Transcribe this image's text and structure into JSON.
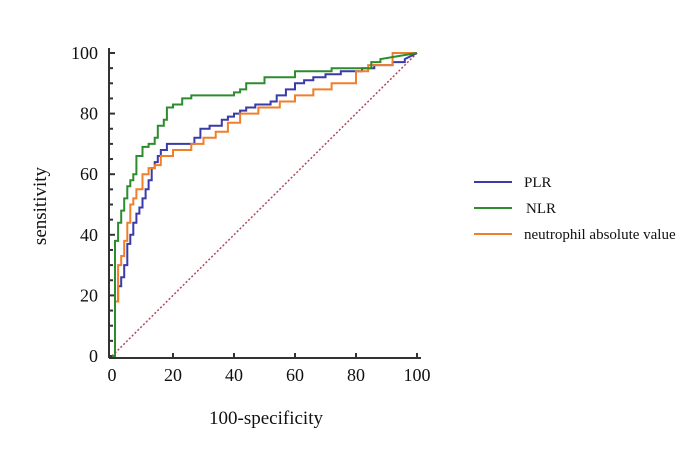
{
  "chart_data": {
    "type": "line",
    "title": "",
    "xlabel": "100-specificity",
    "ylabel": "sensitivity",
    "xlim": [
      0,
      100
    ],
    "ylim": [
      0,
      100
    ],
    "xticks": [
      0,
      20,
      40,
      60,
      80,
      100
    ],
    "yticks": [
      0,
      20,
      40,
      60,
      80,
      100
    ],
    "grid": false,
    "legend_position": "right",
    "series": [
      {
        "name": "PLR",
        "color": "#3a3aa8",
        "x": [
          0,
          1,
          1,
          1,
          2,
          2,
          3,
          3,
          4,
          4,
          5,
          5,
          6,
          6,
          7,
          7,
          8,
          8,
          9,
          9,
          10,
          10,
          11,
          11,
          12,
          12,
          13,
          13,
          14,
          14,
          15,
          15,
          16,
          16,
          18,
          18,
          20,
          20,
          27,
          27,
          29,
          29,
          32,
          32,
          36,
          36,
          38,
          38,
          40,
          40,
          42,
          42,
          44,
          44,
          47,
          47,
          52,
          52,
          54,
          54,
          57,
          57,
          60,
          60,
          63,
          63,
          66,
          66,
          70,
          70,
          75,
          75,
          82,
          82,
          86,
          86,
          92,
          92,
          96,
          96,
          100
        ],
        "y": [
          0,
          0,
          5,
          18,
          18,
          23,
          23,
          26,
          26,
          30,
          30,
          37,
          37,
          40,
          40,
          44,
          44,
          47,
          47,
          49,
          49,
          52,
          52,
          55,
          55,
          58,
          58,
          62,
          62,
          64,
          64,
          66,
          66,
          68,
          68,
          70,
          70,
          70,
          70,
          72,
          72,
          75,
          75,
          76,
          76,
          78,
          78,
          79,
          79,
          80,
          80,
          81,
          81,
          82,
          82,
          83,
          83,
          84,
          84,
          86,
          86,
          88,
          88,
          90,
          90,
          91,
          91,
          92,
          92,
          93,
          93,
          94,
          94,
          95,
          95,
          96,
          96,
          97,
          97,
          98,
          100
        ]
      },
      {
        "name": "NLR",
        "color": "#2e8b2e",
        "x": [
          0,
          1,
          1,
          1,
          2,
          2,
          3,
          3,
          4,
          4,
          5,
          5,
          6,
          6,
          7,
          7,
          8,
          8,
          10,
          10,
          12,
          12,
          14,
          14,
          15,
          15,
          17,
          17,
          18,
          18,
          20,
          20,
          23,
          23,
          26,
          26,
          40,
          40,
          42,
          42,
          44,
          44,
          50,
          50,
          60,
          60,
          72,
          72,
          85,
          85,
          88,
          88,
          100
        ],
        "y": [
          0,
          0,
          20,
          38,
          38,
          44,
          44,
          48,
          48,
          52,
          52,
          56,
          56,
          58,
          58,
          60,
          60,
          66,
          66,
          69,
          69,
          70,
          70,
          72,
          72,
          76,
          76,
          78,
          78,
          82,
          82,
          83,
          83,
          85,
          85,
          86,
          86,
          87,
          87,
          88,
          88,
          90,
          90,
          92,
          92,
          94,
          94,
          95,
          95,
          97,
          97,
          98,
          100
        ]
      },
      {
        "name": "neutrophil absolute value",
        "color": "#f07f2a",
        "x": [
          0,
          1,
          1,
          2,
          2,
          3,
          3,
          4,
          4,
          5,
          5,
          6,
          6,
          7,
          7,
          8,
          8,
          10,
          10,
          12,
          12,
          14,
          14,
          16,
          16,
          20,
          20,
          26,
          26,
          30,
          30,
          34,
          34,
          38,
          38,
          42,
          42,
          48,
          48,
          55,
          55,
          60,
          60,
          66,
          66,
          72,
          72,
          80,
          80,
          84,
          84,
          92,
          92,
          100
        ],
        "y": [
          0,
          0,
          18,
          18,
          30,
          30,
          33,
          33,
          38,
          38,
          44,
          44,
          50,
          50,
          52,
          52,
          55,
          55,
          60,
          60,
          62,
          62,
          63,
          63,
          66,
          66,
          68,
          68,
          70,
          70,
          72,
          72,
          74,
          74,
          77,
          77,
          80,
          80,
          82,
          82,
          84,
          84,
          86,
          86,
          88,
          88,
          90,
          90,
          94,
          94,
          96,
          96,
          100,
          100
        ]
      },
      {
        "name": "reference",
        "color": "#b0485c",
        "style": "dotted",
        "x": [
          0,
          100
        ],
        "y": [
          0,
          100
        ]
      }
    ]
  }
}
